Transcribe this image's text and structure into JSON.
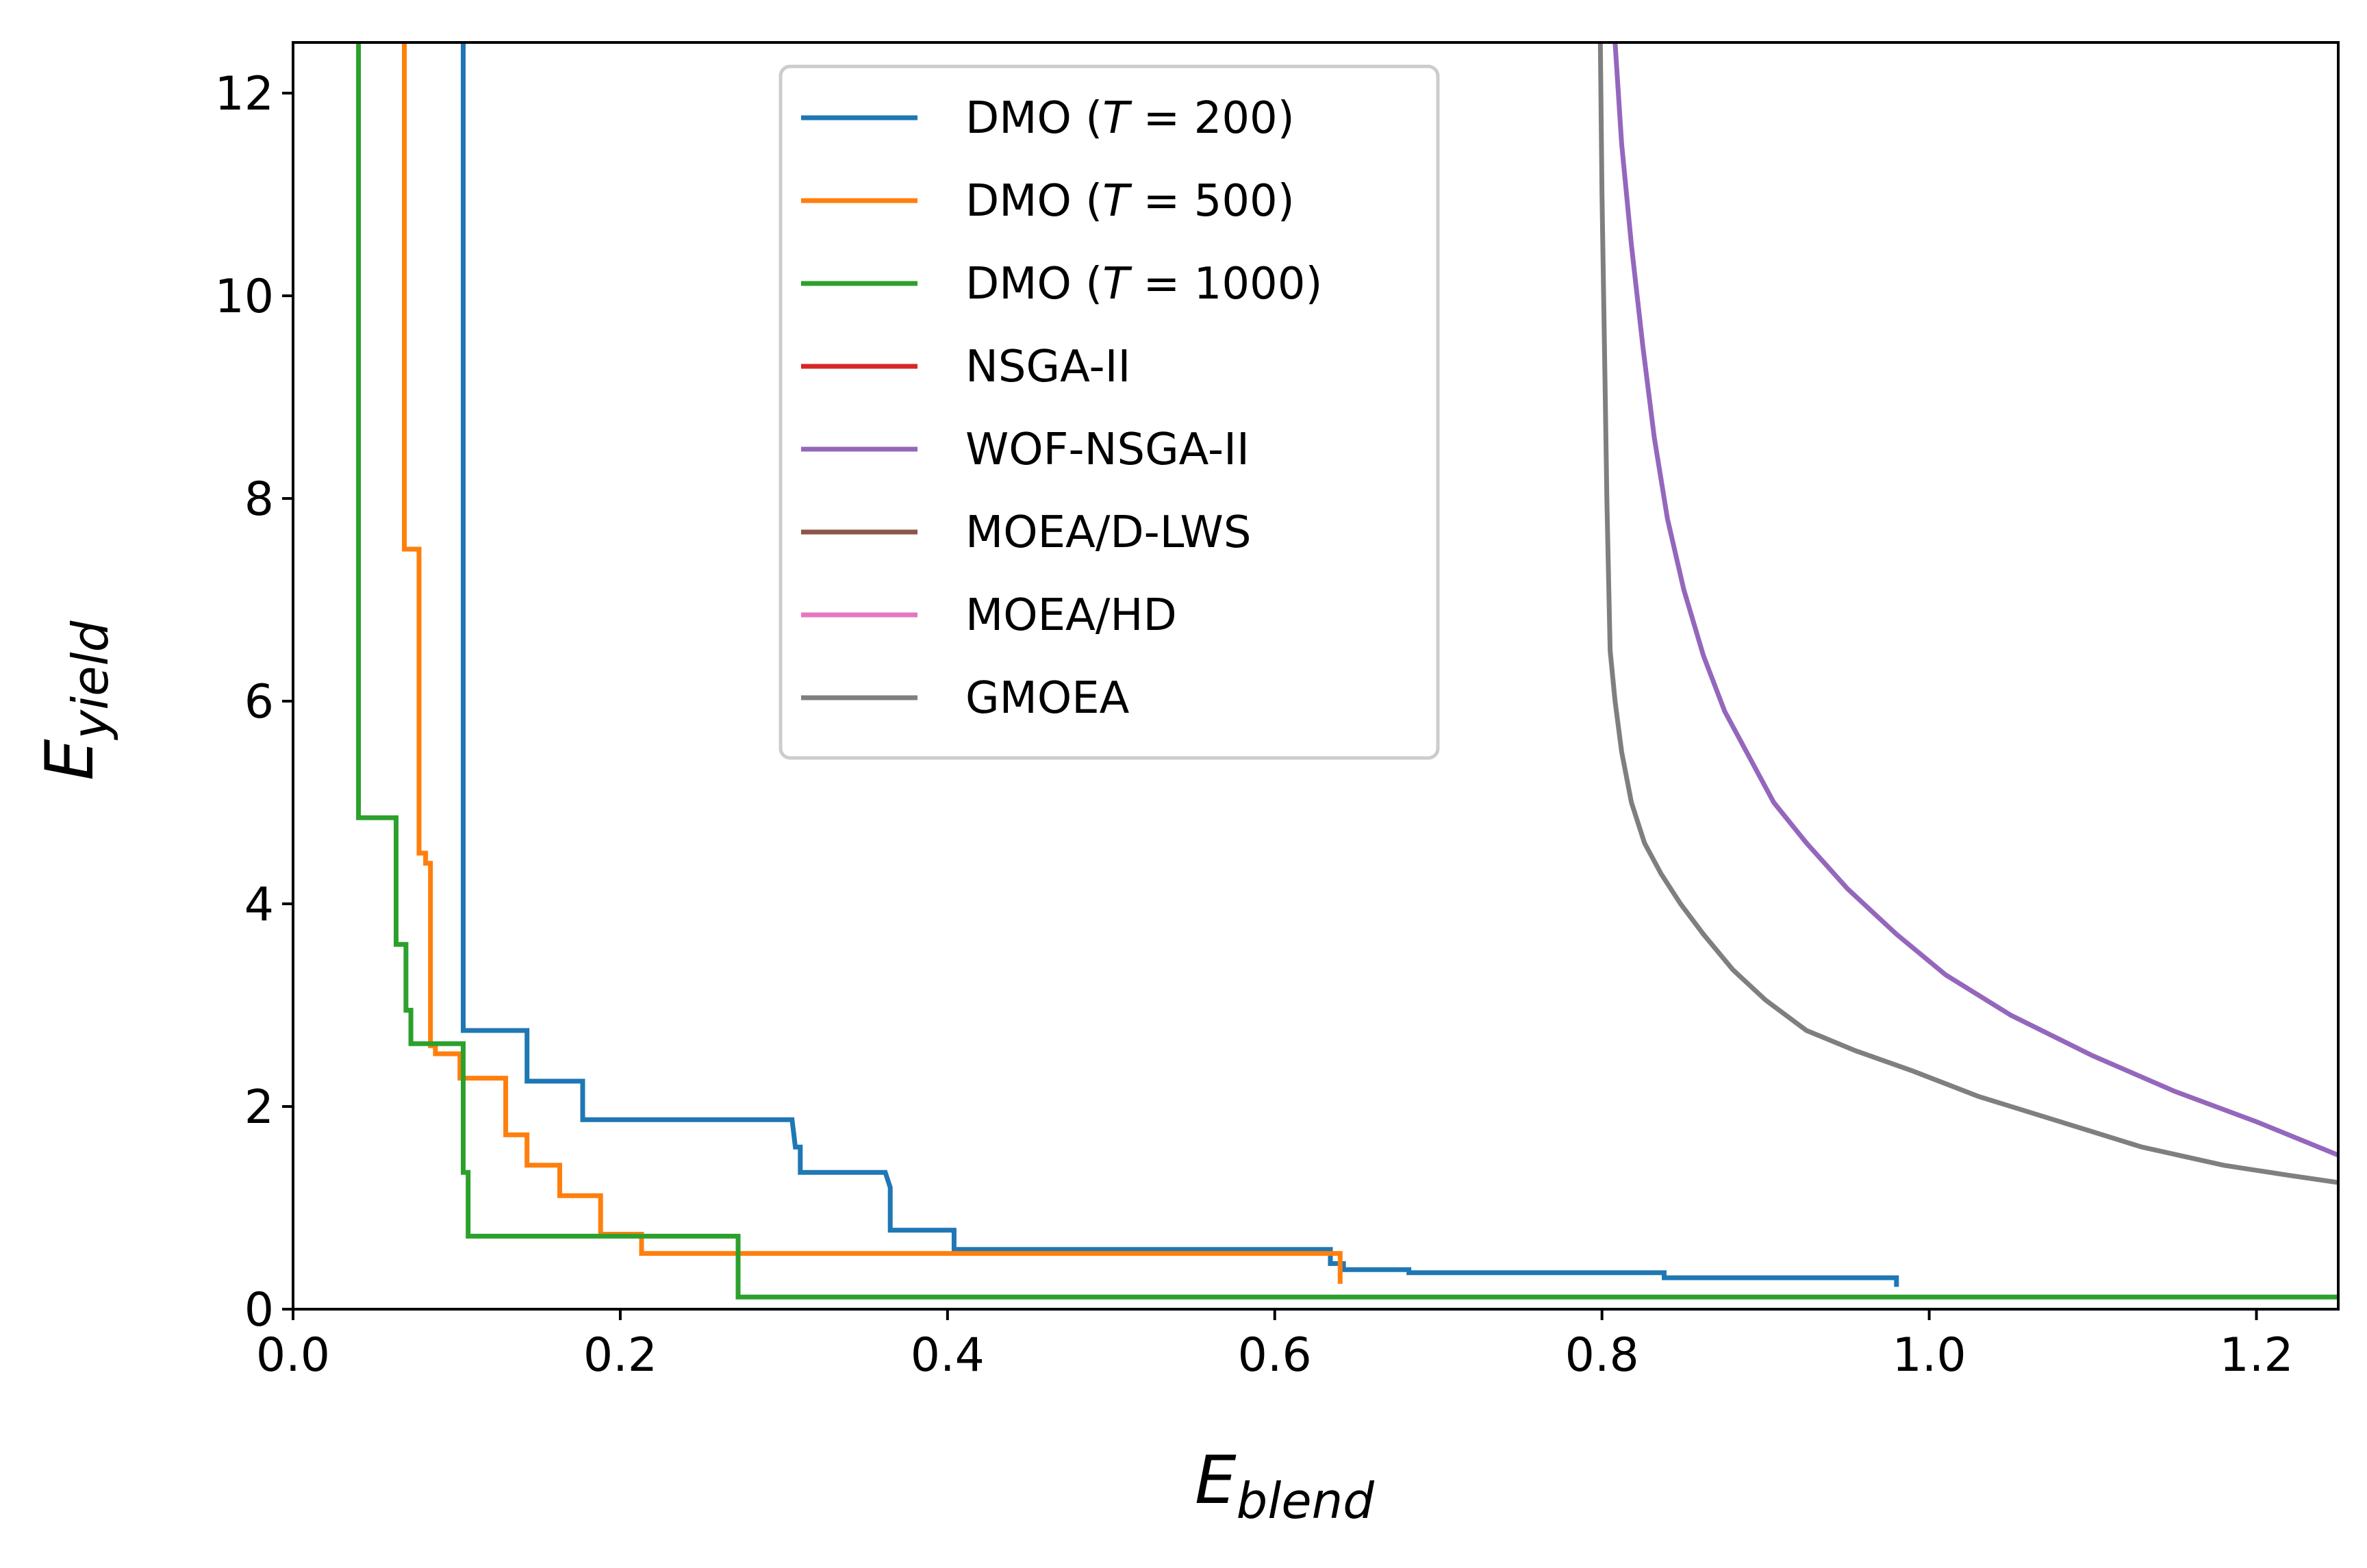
{
  "chart_data": {
    "type": "line",
    "title": "",
    "xlabel": {
      "main": "E",
      "sub": "blend"
    },
    "ylabel": {
      "main": "E",
      "sub": "yield"
    },
    "xlim": [
      0.0,
      1.25
    ],
    "ylim": [
      0,
      12.5
    ],
    "xticks": [
      0.0,
      0.2,
      0.4,
      0.6,
      0.8,
      1.0,
      1.2
    ],
    "xtick_labels": [
      "0.0",
      "0.2",
      "0.4",
      "0.6",
      "0.8",
      "1.0",
      "1.2"
    ],
    "yticks": [
      0,
      2,
      4,
      6,
      8,
      10,
      12
    ],
    "ytick_labels": [
      "0",
      "2",
      "4",
      "6",
      "8",
      "10",
      "12"
    ],
    "grid": false,
    "legend_position": "top-center",
    "legend": [
      {
        "pre": "DMO (",
        "var": "T",
        "post": " = 200)",
        "color": "#1f77b4"
      },
      {
        "pre": "DMO (",
        "var": "T",
        "post": " = 500)",
        "color": "#ff7f0e"
      },
      {
        "pre": "DMO (",
        "var": "T",
        "post": " = 1000)",
        "color": "#2ca02c"
      },
      {
        "pre": "NSGA-II",
        "var": "",
        "post": "",
        "color": "#d62728"
      },
      {
        "pre": "WOF-NSGA-II",
        "var": "",
        "post": "",
        "color": "#9467bd"
      },
      {
        "pre": "MOEA/D-LWS",
        "var": "",
        "post": "",
        "color": "#8c564b"
      },
      {
        "pre": "MOEA/HD",
        "var": "",
        "post": "",
        "color": "#e377c2"
      },
      {
        "pre": "GMOEA",
        "var": "",
        "post": "",
        "color": "#7f7f7f"
      }
    ],
    "series": [
      {
        "name": "DMO (T = 200)",
        "color": "#1f77b4",
        "step": true,
        "x": [
          0.104,
          0.104,
          0.143,
          0.143,
          0.177,
          0.177,
          0.305,
          0.307,
          0.31,
          0.31,
          0.362,
          0.365,
          0.365,
          0.404,
          0.404,
          0.632,
          0.634,
          0.634,
          0.642,
          0.642,
          0.682,
          0.682,
          0.838,
          0.838,
          0.98,
          0.98
        ],
        "y": [
          12.5,
          2.75,
          2.75,
          2.25,
          2.25,
          1.87,
          1.87,
          1.6,
          1.6,
          1.35,
          1.35,
          1.2,
          0.78,
          0.78,
          0.59,
          0.59,
          0.59,
          0.45,
          0.45,
          0.39,
          0.39,
          0.36,
          0.36,
          0.31,
          0.31,
          0.22
        ]
      },
      {
        "name": "DMO (T = 500)",
        "color": "#ff7f0e",
        "step": true,
        "x": [
          0.068,
          0.068,
          0.077,
          0.077,
          0.081,
          0.081,
          0.084,
          0.084,
          0.087,
          0.087,
          0.102,
          0.102,
          0.13,
          0.13,
          0.143,
          0.143,
          0.163,
          0.163,
          0.188,
          0.188,
          0.213,
          0.213,
          0.64,
          0.64
        ],
        "y": [
          12.5,
          7.5,
          7.5,
          4.5,
          4.5,
          4.4,
          4.4,
          2.6,
          2.6,
          2.52,
          2.52,
          2.28,
          2.28,
          1.72,
          1.72,
          1.42,
          1.42,
          1.12,
          1.12,
          0.74,
          0.74,
          0.55,
          0.55,
          0.25
        ]
      },
      {
        "name": "DMO (T = 1000)",
        "color": "#2ca02c",
        "step": true,
        "x": [
          0.04,
          0.04,
          0.063,
          0.063,
          0.069,
          0.069,
          0.072,
          0.072,
          0.104,
          0.104,
          0.107,
          0.107,
          0.272,
          0.272,
          1.25
        ],
        "y": [
          12.5,
          4.85,
          4.85,
          3.6,
          3.6,
          2.95,
          2.95,
          2.62,
          2.62,
          1.35,
          1.35,
          0.72,
          0.72,
          0.12,
          0.12
        ]
      },
      {
        "name": "WOF-NSGA-II",
        "color": "#9467bd",
        "step": false,
        "x": [
          0.808,
          0.812,
          0.818,
          0.825,
          0.832,
          0.84,
          0.85,
          0.862,
          0.875,
          0.89,
          0.905,
          0.925,
          0.95,
          0.98,
          1.01,
          1.05,
          1.1,
          1.15,
          1.2,
          1.25
        ],
        "y": [
          12.5,
          11.5,
          10.5,
          9.5,
          8.6,
          7.8,
          7.1,
          6.45,
          5.9,
          5.45,
          5.0,
          4.6,
          4.15,
          3.7,
          3.3,
          2.9,
          2.5,
          2.15,
          1.85,
          1.52
        ]
      },
      {
        "name": "GMOEA",
        "color": "#7f7f7f",
        "step": false,
        "x": [
          0.799,
          0.8,
          0.801,
          0.802,
          0.803,
          0.805,
          0.808,
          0.812,
          0.818,
          0.826,
          0.836,
          0.848,
          0.862,
          0.88,
          0.9,
          0.925,
          0.955,
          0.99,
          1.03,
          1.08,
          1.13,
          1.18,
          1.22,
          1.25
        ],
        "y": [
          12.5,
          11.0,
          10.0,
          9.0,
          8.0,
          6.5,
          6.0,
          5.5,
          5.0,
          4.6,
          4.3,
          4.0,
          3.7,
          3.35,
          3.05,
          2.75,
          2.55,
          2.35,
          2.1,
          1.85,
          1.6,
          1.42,
          1.32,
          1.25
        ]
      }
    ]
  }
}
